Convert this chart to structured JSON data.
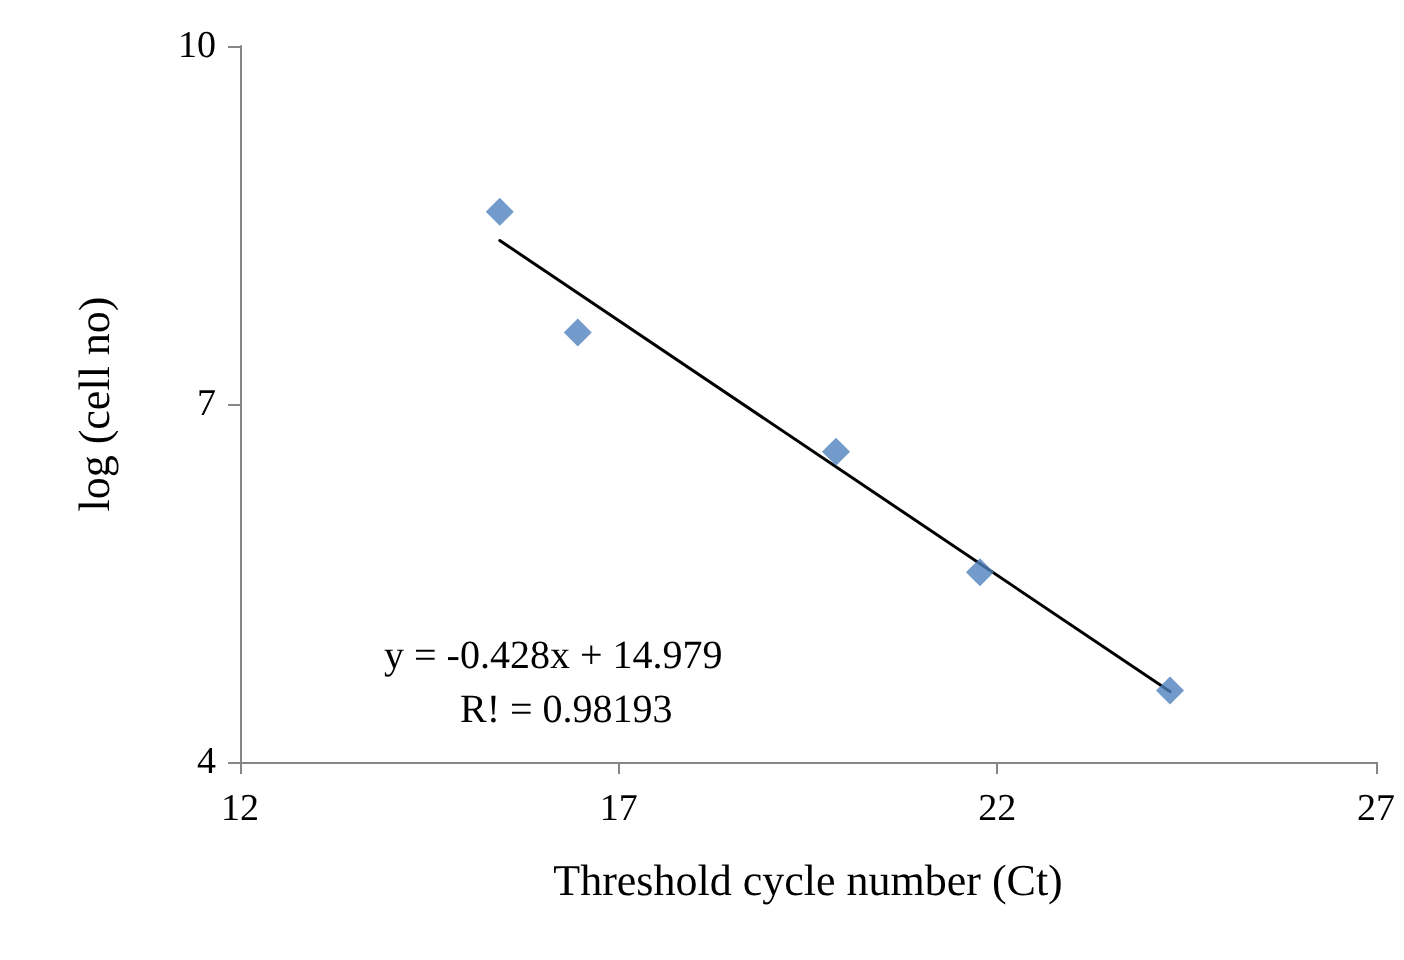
{
  "chart_data": {
    "type": "scatter",
    "xlabel": "Threshold cycle number (Ct)",
    "ylabel": "log (cell no)",
    "xlim": [
      12,
      27
    ],
    "xticks": [
      12,
      17,
      22,
      27
    ],
    "ylim": [
      4,
      10
    ],
    "yticks": [
      4,
      7,
      10
    ],
    "grid": false,
    "marker": "diamond",
    "series": [
      {
        "color": "#4f81bd",
        "x": [
          15.43,
          16.46,
          19.87,
          21.77,
          24.28
        ],
        "values": [
          8.61,
          7.6,
          6.6,
          5.59,
          4.6
        ]
      },
      {
        "type": "line",
        "color": "#000000",
        "marker": "none",
        "line_style": "solid",
        "x": [
          15.43,
          24.28
        ],
        "values": [
          8.37,
          4.59
        ]
      }
    ],
    "annotations": [
      "y = -0.428x + 14.979",
      "R! = 0.98193"
    ]
  }
}
